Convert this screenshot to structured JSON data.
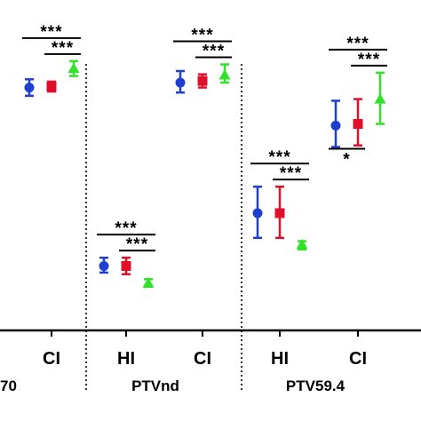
{
  "chart_data": {
    "type": "scatter",
    "title": "",
    "xlabel": "",
    "ylabel": "",
    "ylim": [
      0,
      100
    ],
    "grid": false,
    "legend": "none",
    "series": [
      {
        "key": "blue",
        "color": "#1f3fd0",
        "marker": "circle"
      },
      {
        "key": "red",
        "color": "#e0102a",
        "marker": "square"
      },
      {
        "key": "green",
        "color": "#33e02a",
        "marker": "triangle"
      }
    ],
    "groups": [
      {
        "name": "70",
        "ticks": [
          {
            "label": "",
            "has_label": false,
            "points": []
          },
          {
            "label": "CI",
            "has_label": true,
            "points": [
              {
                "series": "blue",
                "y": 73.5,
                "low": 71,
                "high": 76
              },
              {
                "series": "red",
                "y": 73.8,
                "low": 72.3,
                "high": 75.3
              },
              {
                "series": "green",
                "y": 79.3,
                "low": 77,
                "high": 81.5
              }
            ],
            "significance": [
              {
                "label": "***",
                "from": "blue",
                "to": "green",
                "level": 2
              },
              {
                "label": "***",
                "from": "red",
                "to": "green",
                "level": 1
              }
            ]
          }
        ]
      },
      {
        "name": "PTVnd",
        "ticks": [
          {
            "label": "HI",
            "has_label": true,
            "points": [
              {
                "series": "blue",
                "y": 19.5,
                "low": 17.5,
                "high": 22
              },
              {
                "series": "red",
                "y": 19.5,
                "low": 17,
                "high": 22
              },
              {
                "series": "green",
                "y": 14.3,
                "low": 13.2,
                "high": 15.5
              }
            ],
            "significance": [
              {
                "label": "***",
                "from": "blue",
                "to": "green",
                "level": 2
              },
              {
                "label": "***",
                "from": "red",
                "to": "green",
                "level": 1
              }
            ]
          },
          {
            "label": "CI",
            "has_label": true,
            "points": [
              {
                "series": "blue",
                "y": 75,
                "low": 72,
                "high": 78.5
              },
              {
                "series": "red",
                "y": 75.5,
                "low": 73.5,
                "high": 77.5
              },
              {
                "series": "green",
                "y": 77.3,
                "low": 75,
                "high": 80.5
              }
            ],
            "significance": [
              {
                "label": "***",
                "from": "blue",
                "to": "green",
                "level": 2
              },
              {
                "label": "***",
                "from": "red",
                "to": "green",
                "level": 1
              }
            ]
          }
        ]
      },
      {
        "name": "PTV59.4",
        "ticks": [
          {
            "label": "HI",
            "has_label": true,
            "points": [
              {
                "series": "blue",
                "y": 35.5,
                "low": 28,
                "high": 43.5
              },
              {
                "series": "red",
                "y": 35.5,
                "low": 28,
                "high": 43.5
              },
              {
                "series": "green",
                "y": 26,
                "low": 24.5,
                "high": 27
              }
            ],
            "significance": [
              {
                "label": "***",
                "from": "blue",
                "to": "green",
                "level": 2
              },
              {
                "label": "***",
                "from": "red",
                "to": "green",
                "level": 1
              }
            ]
          },
          {
            "label": "CI",
            "has_label": true,
            "points": [
              {
                "series": "blue",
                "y": 62,
                "low": 55.5,
                "high": 69.5
              },
              {
                "series": "red",
                "y": 62.5,
                "low": 56,
                "high": 70
              },
              {
                "series": "green",
                "y": 70,
                "low": 62.5,
                "high": 78
              }
            ],
            "significance": [
              {
                "label": "***",
                "from": "blue",
                "to": "green",
                "level": 2
              },
              {
                "label": "***",
                "from": "red",
                "to": "green",
                "level": 1
              },
              {
                "label": "*",
                "from": "blue",
                "to": "red",
                "level": -1
              }
            ]
          }
        ]
      }
    ]
  }
}
